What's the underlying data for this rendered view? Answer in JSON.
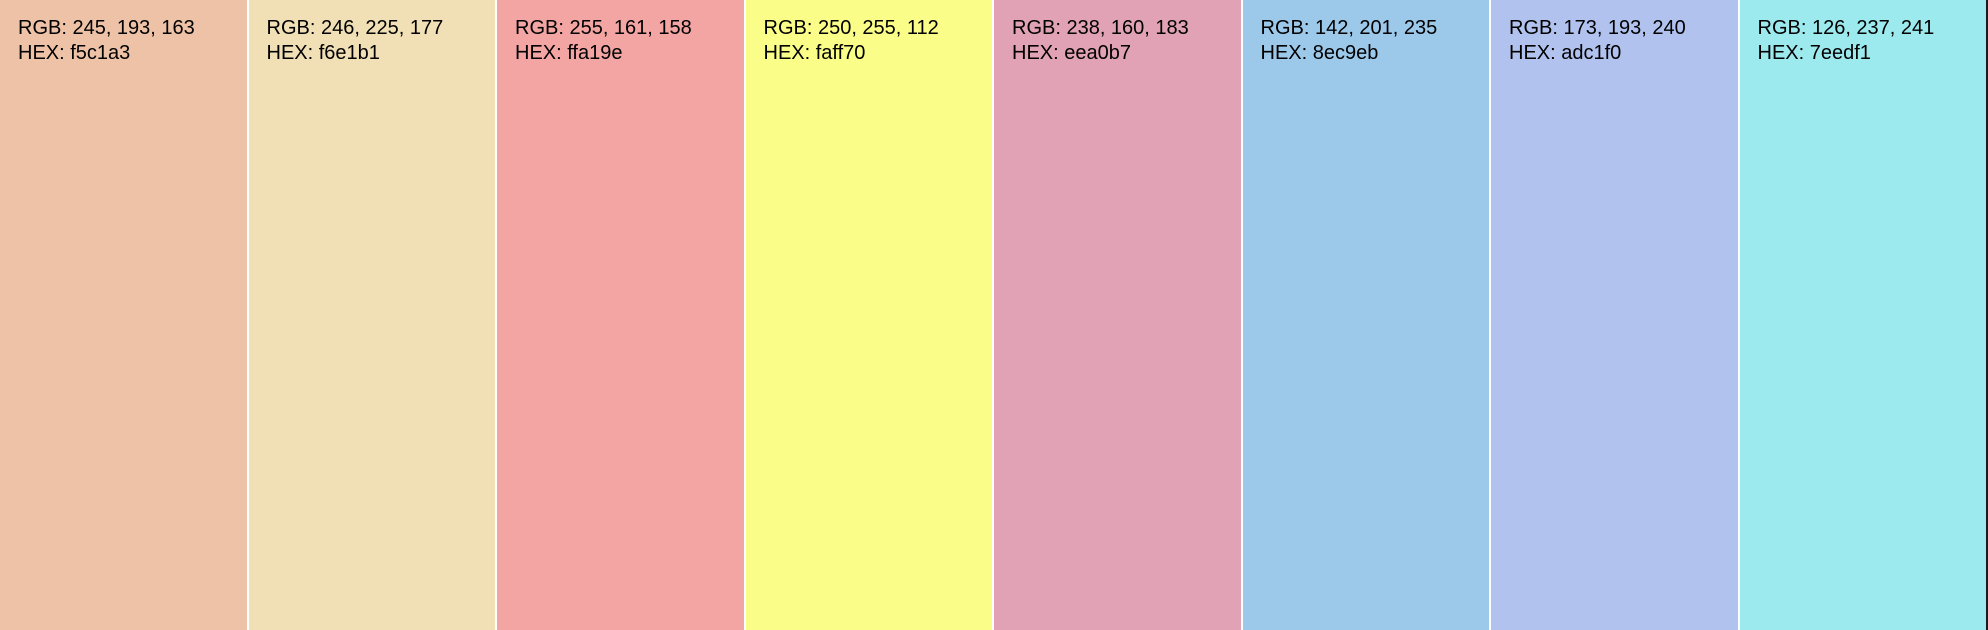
{
  "swatches": [
    {
      "rgb": "RGB: 245, 193, 163",
      "hex": "HEX: f5c1a3",
      "fill": "#edc2a7"
    },
    {
      "rgb": "RGB: 246, 225, 177",
      "hex": "HEX: f6e1b1",
      "fill": "#f1e0b5"
    },
    {
      "rgb": "RGB: 255, 161, 158",
      "hex": "HEX: ffa19e",
      "fill": "#f2a5a3"
    },
    {
      "rgb": "RGB: 250, 255, 112",
      "hex": "HEX: faff70",
      "fill": "#fafd87"
    },
    {
      "rgb": "RGB: 238, 160, 183",
      "hex": "HEX: eea0b7",
      "fill": "#e1a2b6"
    },
    {
      "rgb": "RGB: 142, 201, 235",
      "hex": "HEX: 8ec9eb",
      "fill": "#9cc9ea"
    },
    {
      "rgb": "RGB: 173, 193, 240",
      "hex": "HEX: adc1f0",
      "fill": "#b0c2ed"
    },
    {
      "rgb": "RGB: 126, 237, 241",
      "hex": "HEX: 7eedf1",
      "fill": "#9ce9ee"
    }
  ]
}
